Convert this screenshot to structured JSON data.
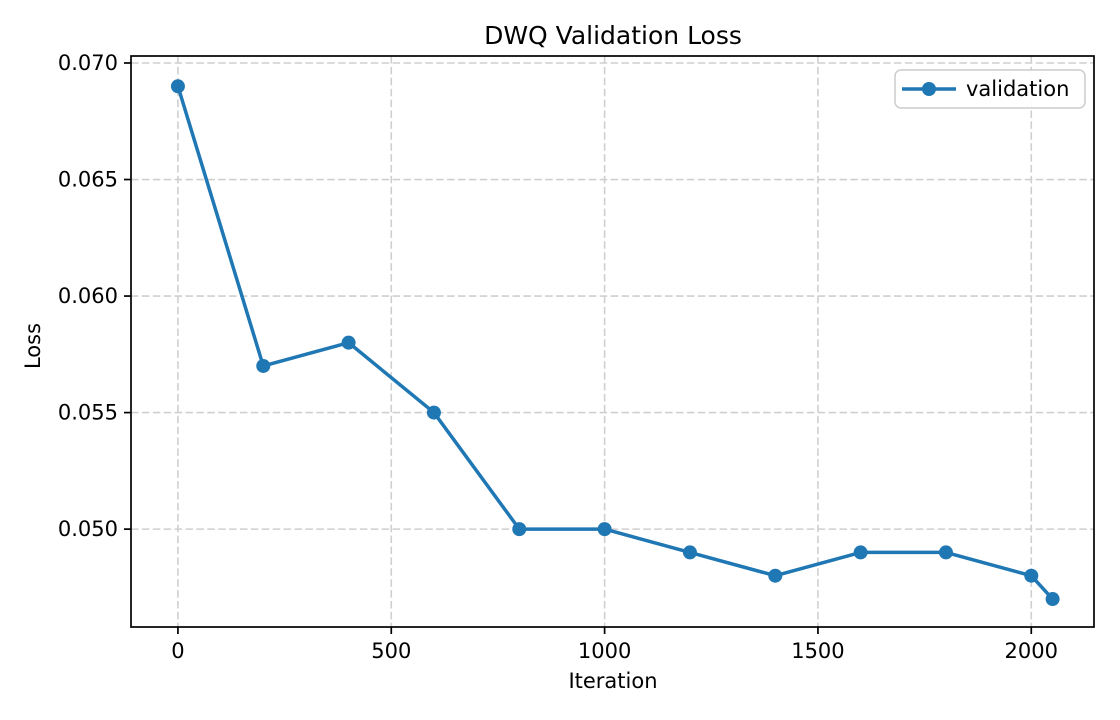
{
  "chart_data": {
    "type": "line",
    "title": "DWQ Validation Loss",
    "xlabel": "Iteration",
    "ylabel": "Loss",
    "series": [
      {
        "name": "validation",
        "color": "#1f77b4",
        "marker": "circle",
        "x": [
          0,
          200,
          400,
          600,
          800,
          1000,
          1200,
          1400,
          1600,
          1800,
          2000,
          2050
        ],
        "y": [
          0.069,
          0.057,
          0.058,
          0.055,
          0.05,
          0.05,
          0.049,
          0.048,
          0.049,
          0.049,
          0.048,
          0.047
        ]
      }
    ],
    "xticks": [
      0,
      500,
      1000,
      1500,
      2000
    ],
    "yticks": [
      0.05,
      0.055,
      0.06,
      0.065,
      0.07
    ],
    "ytick_labels": [
      "0.050",
      "0.055",
      "0.060",
      "0.065",
      "0.070"
    ],
    "xlim": [
      -110,
      2147
    ],
    "ylim": [
      0.0458,
      0.0703
    ],
    "grid": true,
    "grid_style": "dashed",
    "legend": {
      "position": "upper right",
      "entries": [
        "validation"
      ]
    }
  },
  "colors": {
    "line": "#1f77b4",
    "grid": "#cfcfcf",
    "spine": "#000000",
    "text": "#000000",
    "background": "#ffffff",
    "legend_border": "#cccccc",
    "legend_fill": "#ffffff"
  }
}
